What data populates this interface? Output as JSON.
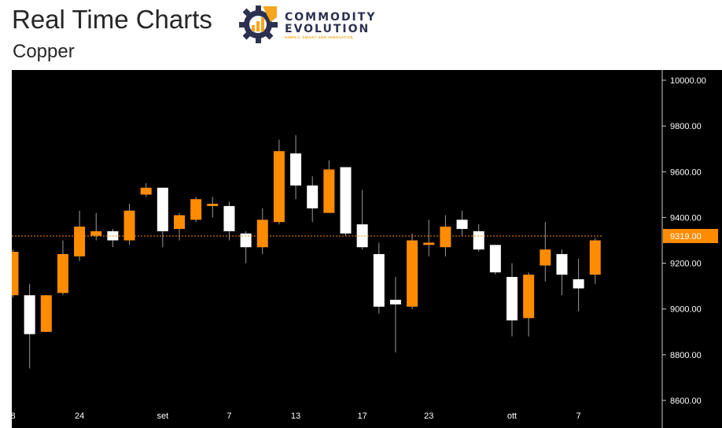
{
  "header": {
    "title": "Real Time Charts",
    "subtitle": "Copper"
  },
  "logo": {
    "line1": "COMMODITY",
    "line2": "EVOLUTION",
    "tagline": "SIMPLY, SMART AND INNOVATIVE",
    "colors": {
      "gear": "#2c3150",
      "accent": "#f7a51c"
    }
  },
  "colors": {
    "background": "#000000",
    "bullish": "#ff8c00",
    "bearish": "#ffffff",
    "wick": "#9a9a9a",
    "last_price_line": "#ff8c00",
    "axis_text": "#ffffff"
  },
  "chart_data": {
    "type": "candlestick",
    "title": "Copper",
    "ylim": [
      8600,
      10000
    ],
    "yticks": [
      8600,
      8800,
      9000,
      9200,
      9400,
      9600,
      9800,
      10000
    ],
    "ytick_labels": [
      "8600.00",
      "8800.00",
      "9000.00",
      "9200.00",
      "9400.00",
      "9600.00",
      "9800.00",
      "10000.00"
    ],
    "last_price": 9319,
    "last_price_label": "9319.00",
    "x_tick_labels": [
      {
        "label": "8",
        "index": 0
      },
      {
        "label": "24",
        "index": 4
      },
      {
        "label": "set",
        "index": 9
      },
      {
        "label": "7",
        "index": 13
      },
      {
        "label": "13",
        "index": 17
      },
      {
        "label": "17",
        "index": 21
      },
      {
        "label": "23",
        "index": 25
      },
      {
        "label": "ott",
        "index": 30
      },
      {
        "label": "7",
        "index": 34
      }
    ],
    "candles": [
      {
        "o": 9060,
        "h": 9260,
        "l": 9050,
        "c": 9250
      },
      {
        "o": 9060,
        "h": 9110,
        "l": 8740,
        "c": 8890
      },
      {
        "o": 8900,
        "h": 9060,
        "l": 8900,
        "c": 9060
      },
      {
        "o": 9070,
        "h": 9300,
        "l": 9060,
        "c": 9240
      },
      {
        "o": 9230,
        "h": 9430,
        "l": 9210,
        "c": 9360
      },
      {
        "o": 9320,
        "h": 9420,
        "l": 9300,
        "c": 9340
      },
      {
        "o": 9340,
        "h": 9350,
        "l": 9270,
        "c": 9300
      },
      {
        "o": 9300,
        "h": 9460,
        "l": 9280,
        "c": 9430
      },
      {
        "o": 9500,
        "h": 9550,
        "l": 9490,
        "c": 9530
      },
      {
        "o": 9530,
        "h": 9530,
        "l": 9270,
        "c": 9340
      },
      {
        "o": 9350,
        "h": 9420,
        "l": 9300,
        "c": 9410
      },
      {
        "o": 9390,
        "h": 9490,
        "l": 9380,
        "c": 9480
      },
      {
        "o": 9450,
        "h": 9490,
        "l": 9400,
        "c": 9460
      },
      {
        "o": 9450,
        "h": 9470,
        "l": 9300,
        "c": 9340
      },
      {
        "o": 9330,
        "h": 9340,
        "l": 9200,
        "c": 9270
      },
      {
        "o": 9270,
        "h": 9440,
        "l": 9240,
        "c": 9390
      },
      {
        "o": 9380,
        "h": 9740,
        "l": 9370,
        "c": 9690
      },
      {
        "o": 9680,
        "h": 9760,
        "l": 9480,
        "c": 9540
      },
      {
        "o": 9540,
        "h": 9580,
        "l": 9380,
        "c": 9440
      },
      {
        "o": 9420,
        "h": 9650,
        "l": 9420,
        "c": 9610
      },
      {
        "o": 9620,
        "h": 9620,
        "l": 9320,
        "c": 9330
      },
      {
        "o": 9370,
        "h": 9520,
        "l": 9260,
        "c": 9270
      },
      {
        "o": 9240,
        "h": 9290,
        "l": 8980,
        "c": 9010
      },
      {
        "o": 9040,
        "h": 9140,
        "l": 8810,
        "c": 9020
      },
      {
        "o": 9010,
        "h": 9330,
        "l": 9000,
        "c": 9300
      },
      {
        "o": 9280,
        "h": 9390,
        "l": 9230,
        "c": 9290
      },
      {
        "o": 9270,
        "h": 9410,
        "l": 9230,
        "c": 9360
      },
      {
        "o": 9390,
        "h": 9430,
        "l": 9320,
        "c": 9350
      },
      {
        "o": 9340,
        "h": 9370,
        "l": 9250,
        "c": 9260
      },
      {
        "o": 9280,
        "h": 9280,
        "l": 9150,
        "c": 9160
      },
      {
        "o": 9140,
        "h": 9200,
        "l": 8880,
        "c": 8950
      },
      {
        "o": 8960,
        "h": 9160,
        "l": 8880,
        "c": 9150
      },
      {
        "o": 9190,
        "h": 9380,
        "l": 9120,
        "c": 9260
      },
      {
        "o": 9240,
        "h": 9260,
        "l": 9060,
        "c": 9150
      },
      {
        "o": 9130,
        "h": 9220,
        "l": 8990,
        "c": 9090
      },
      {
        "o": 9150,
        "h": 9310,
        "l": 9110,
        "c": 9300
      }
    ]
  }
}
